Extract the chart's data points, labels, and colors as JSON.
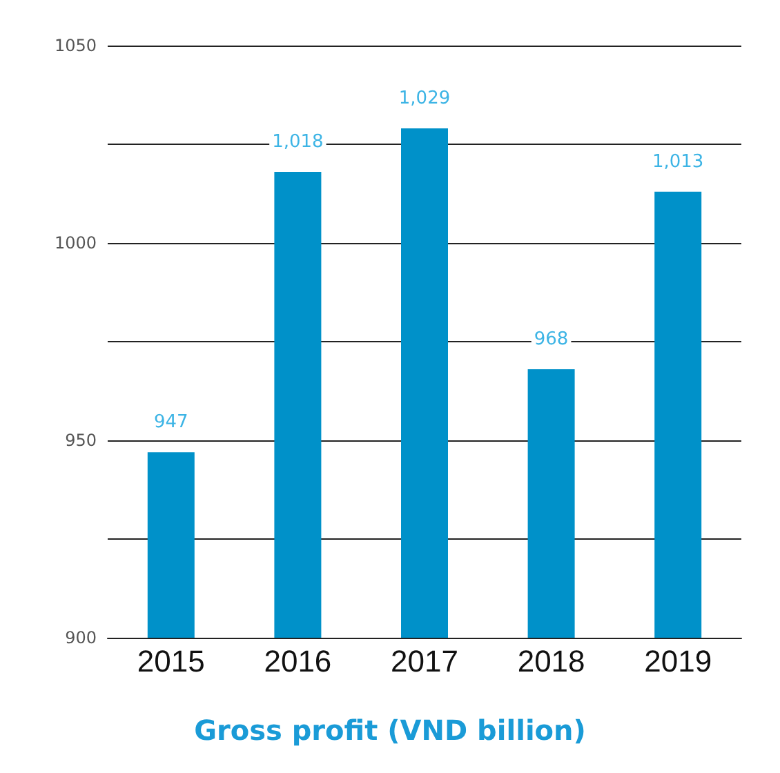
{
  "chart_data": {
    "type": "bar",
    "title": "Gross profit (VND billion)",
    "categories": [
      "2015",
      "2016",
      "2017",
      "2018",
      "2019"
    ],
    "values": [
      947,
      1018,
      1029,
      968,
      1013
    ],
    "value_labels": [
      "947",
      "1,018",
      "1,029",
      "968",
      "1,013"
    ],
    "color": "#0091c9",
    "ylim": [
      900,
      1050
    ],
    "yticks": [
      900,
      {
        "value": 925,
        "label": null
      },
      950,
      {
        "value": 975,
        "label": null
      },
      1000,
      {
        "value": 1025,
        "label": null
      },
      1050
    ],
    "grid": "y"
  }
}
